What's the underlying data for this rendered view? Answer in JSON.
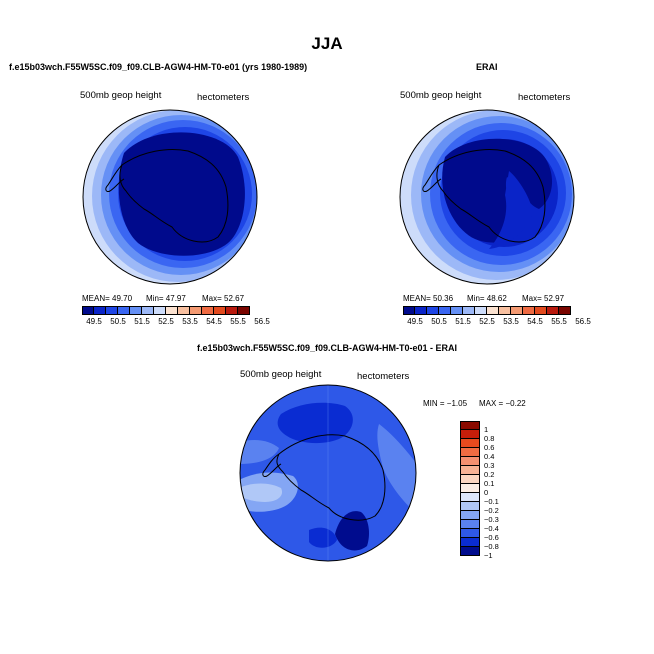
{
  "title": "JJA",
  "panel_left": {
    "case_title": "f.e15b03wch.F55W5SC.f09_f09.CLB-AGW4-HM-T0-e01 (yrs 1980-1989)",
    "variable_label": "500mb geop height",
    "units_label": "hectometers",
    "stats": {
      "mean_label": "MEAN=",
      "mean": "49.70",
      "min_label": "Min=",
      "min": "47.97",
      "max_label": "Max=",
      "max": "52.67"
    }
  },
  "panel_right": {
    "case_title": "ERAI",
    "variable_label": "500mb geop height",
    "units_label": "hectometers",
    "stats": {
      "mean_label": "MEAN=",
      "mean": "50.36",
      "min_label": "Min=",
      "min": "48.62",
      "max_label": "Max=",
      "max": "52.97"
    }
  },
  "panel_diff": {
    "case_title": "f.e15b03wch.F55W5SC.f09_f09.CLB-AGW4-HM-T0-e01 - ERAI",
    "variable_label": "500mb geop height",
    "units_label": "hectometers",
    "stats": {
      "min_label": "MIN =",
      "min": "−1.05",
      "max_label": "MAX =",
      "max": "−0.22"
    }
  },
  "colorbar_abs": {
    "ticks": [
      "49.5",
      "50.5",
      "51.5",
      "52.5",
      "53.5",
      "54.5",
      "55.5",
      "56.5"
    ],
    "colors": [
      "#000a8c",
      "#0a24c8",
      "#1e45e6",
      "#3a66f2",
      "#6590f5",
      "#9cb8f7",
      "#cddcfa",
      "#fbe2d0",
      "#f8c0a0",
      "#f49a72",
      "#ee6a42",
      "#e24a1e",
      "#b91a0e",
      "#7a0500"
    ]
  },
  "colorbar_diff": {
    "ticks": [
      "1",
      "0.8",
      "0.6",
      "0.4",
      "0.3",
      "0.2",
      "0.1",
      "0",
      "−0.1",
      "−0.2",
      "−0.3",
      "−0.4",
      "−0.6",
      "−0.8",
      "−1"
    ],
    "colors": [
      "#8a0a00",
      "#c81e0a",
      "#e64a1e",
      "#f06c42",
      "#f49070",
      "#f7b294",
      "#fbd6c0",
      "#fbeee4",
      "#dce6fa",
      "#b0c8f7",
      "#84a6f4",
      "#5a82f0",
      "#2e58e8",
      "#0a2cd2",
      "#000c8e"
    ]
  }
}
